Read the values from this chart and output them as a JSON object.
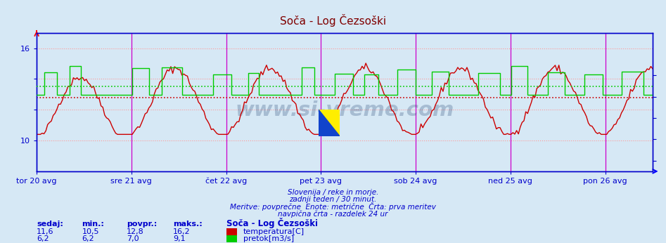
{
  "title": "Soča - Log Čezsoški",
  "title_color": "#800000",
  "bg_color": "#d6e8f5",
  "plot_bg_color": "#d6e8f5",
  "grid_color": "#ff9999",
  "vline_color": "#cc00cc",
  "vline_day_color": "#aaaaaa",
  "axis_color": "#0000cc",
  "tick_color": "#0000cc",
  "temp_color": "#cc0000",
  "flow_color": "#00cc00",
  "x_labels": [
    "tor 20 avg",
    "sre 21 avg",
    "čet 22 avg",
    "pet 23 avg",
    "sob 24 avg",
    "ned 25 avg",
    "pon 26 avg"
  ],
  "n_points": 336,
  "temp_avg": 12.8,
  "flow_avg": 7.0,
  "subtitle1": "Slovenija / reke in morje.",
  "subtitle2": "zadnji teden / 30 minut.",
  "subtitle3": "Meritve: povprečne  Enote: metrične  Črta: prva meritev",
  "subtitle4": "navpična črta - razdelek 24 ur",
  "subtitle_color": "#0000cc",
  "legend_title": "Soča - Log Čezsoški",
  "stats_color": "#0000cc",
  "sedaj_label": "sedaj:",
  "min_label": "min.:",
  "povpr_label": "povpr.:",
  "maks_label": "maks.:",
  "temp_sedaj": 11.6,
  "temp_min": 10.5,
  "temp_povpr": 12.8,
  "temp_maks": 16.2,
  "flow_sedaj": 6.2,
  "flow_min": 6.2,
  "flow_povpr": 7.0,
  "flow_maks": 9.1,
  "watermark_text": "www.si-vreme.com",
  "watermark_color": "#1a3a6b",
  "temp_label": "temperatura[C]",
  "flow_label": "pretok[m3/s]"
}
